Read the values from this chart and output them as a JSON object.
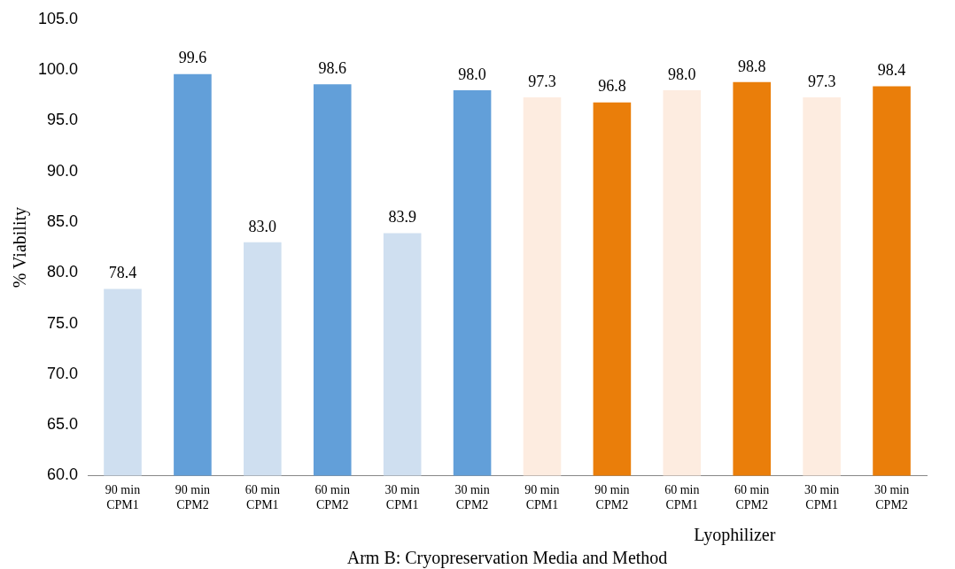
{
  "chart_data": {
    "type": "bar",
    "xlabel": "Arm B: Cryopreservation Media and Method",
    "ylabel": "% Viability",
    "categories": [
      "90 min CPM1",
      "90 min CPM2",
      "60 min CPM1",
      "60 min CPM2",
      "30 min CPM1",
      "30 min CPM2",
      "90 min CPM1",
      "90 min CPM2",
      "60 min CPM1",
      "60 min CPM2",
      "30 min CPM1",
      "30 min CPM2"
    ],
    "values": [
      78.4,
      99.6,
      83.0,
      98.6,
      83.9,
      98.0,
      97.3,
      96.8,
      98.0,
      98.8,
      97.3,
      98.4
    ],
    "colors": [
      "#cfdff0",
      "#629fd9",
      "#cfdff0",
      "#629fd9",
      "#cfdff0",
      "#629fd9",
      "#fdece0",
      "#ea7e0a",
      "#fdece0",
      "#ea7e0a",
      "#fdece0",
      "#ea7e0a"
    ],
    "ylim": [
      60,
      105
    ],
    "yticks": [
      {
        "value": 60,
        "label": "60.0"
      },
      {
        "value": 65,
        "label": "65.0"
      },
      {
        "value": 70,
        "label": "70.0"
      },
      {
        "value": 75,
        "label": "75.0"
      },
      {
        "value": 80,
        "label": "80.0"
      },
      {
        "value": 85,
        "label": "85.0"
      },
      {
        "value": 90,
        "label": "90.0"
      },
      {
        "value": 95,
        "label": "95.0"
      },
      {
        "value": 100,
        "label": "100.0"
      },
      {
        "value": 105,
        "label": "105.0"
      }
    ],
    "annotations": [
      "Lyophilizer"
    ],
    "value_labels": [
      "78.4",
      "99.6",
      "83.0",
      "98.6",
      "83.9",
      "98.0",
      "97.3",
      "96.8",
      "98.0",
      "98.8",
      "97.3",
      "98.4"
    ],
    "grid": false,
    "legend": false
  }
}
